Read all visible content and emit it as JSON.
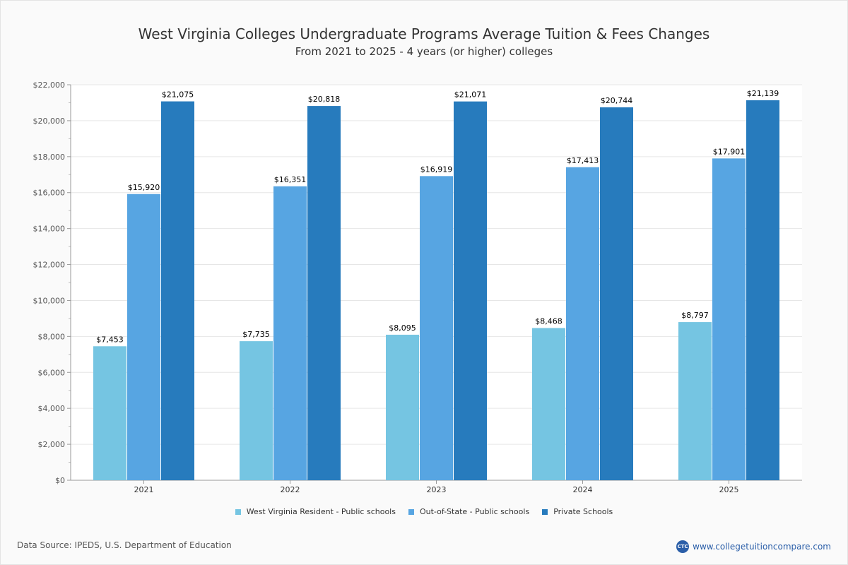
{
  "chart_data": {
    "type": "bar",
    "title": "West Virginia Colleges Undergraduate Programs Average Tuition & Fees Changes",
    "subtitle": "From 2021 to 2025 - 4 years (or higher) colleges",
    "categories": [
      "2021",
      "2022",
      "2023",
      "2024",
      "2025"
    ],
    "series": [
      {
        "name": "West Virginia Resident - Public schools",
        "color": "#75c5e2",
        "values": [
          7453,
          7735,
          8095,
          8468,
          8797
        ]
      },
      {
        "name": "Out-of-State - Public schools",
        "color": "#57a5e2",
        "values": [
          15920,
          16351,
          16919,
          17413,
          17901
        ]
      },
      {
        "name": "Private Schools",
        "color": "#277bbd",
        "values": [
          21075,
          20818,
          21071,
          20744,
          21139
        ]
      }
    ],
    "data_labels": [
      [
        "$7,453",
        "$15,920",
        "$21,075"
      ],
      [
        "$7,735",
        "$16,351",
        "$20,818"
      ],
      [
        "$8,095",
        "$16,919",
        "$21,071"
      ],
      [
        "$8,468",
        "$17,413",
        "$20,744"
      ],
      [
        "$8,797",
        "$17,901",
        "$21,139"
      ]
    ],
    "y_ticks": [
      "$0",
      "$2,000",
      "$4,000",
      "$6,000",
      "$8,000",
      "$10,000",
      "$12,000",
      "$14,000",
      "$16,000",
      "$18,000",
      "$20,000",
      "$22,000"
    ],
    "ylim": [
      0,
      22000
    ],
    "xlabel": "",
    "ylabel": "",
    "grid": true,
    "legend_position": "bottom"
  },
  "footer": {
    "source": "Data Source: IPEDS, U.S. Department of Education",
    "brand_logo": "CTC",
    "brand_url": "www.collegetuitioncompare.com"
  }
}
